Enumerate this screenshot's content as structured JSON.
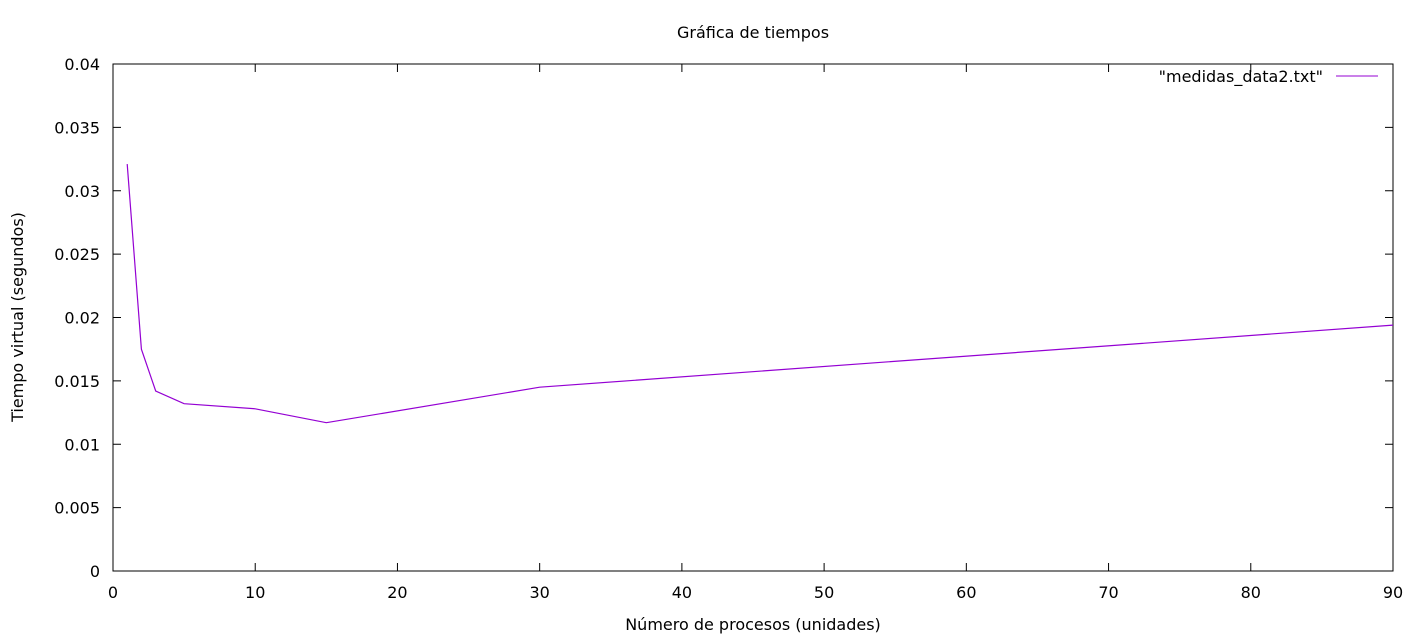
{
  "chart_data": {
    "type": "line",
    "title": "Gráfica de tiempos",
    "xlabel": "Número de procesos (unidades)",
    "ylabel": "Tiempo virtual (segundos)",
    "xlim": [
      0,
      90
    ],
    "ylim": [
      0,
      0.04
    ],
    "x_ticks": [
      0,
      10,
      20,
      30,
      40,
      50,
      60,
      70,
      80,
      90
    ],
    "x_tick_labels": [
      "0",
      "10",
      "20",
      "30",
      "40",
      "50",
      "60",
      "70",
      "80",
      "90"
    ],
    "y_ticks": [
      0,
      0.005,
      0.01,
      0.015,
      0.02,
      0.025,
      0.03,
      0.035,
      0.04
    ],
    "y_tick_labels": [
      "0",
      "0.005",
      "0.01",
      "0.015",
      "0.02",
      "0.025",
      "0.03",
      "0.035",
      "0.04"
    ],
    "grid": false,
    "legend_position": "top-right",
    "series": [
      {
        "name": "\"medidas_data2.txt\"",
        "color": "#9400d3",
        "x": [
          1,
          2,
          3,
          5,
          10,
          15,
          30,
          90
        ],
        "y": [
          0.0321,
          0.0175,
          0.0142,
          0.0132,
          0.0128,
          0.0117,
          0.0145,
          0.0194
        ]
      }
    ]
  }
}
